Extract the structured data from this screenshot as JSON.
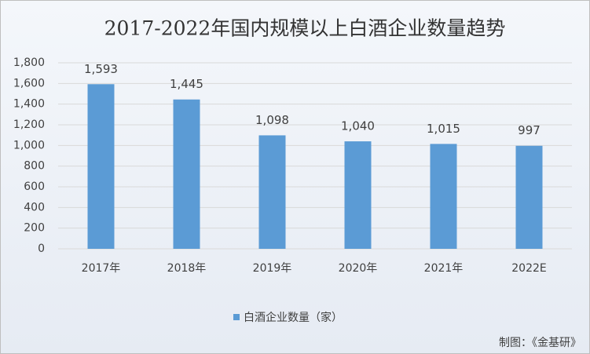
{
  "chart_data": {
    "type": "bar",
    "title": "2017-2022年国内规模以上白酒企业数量趋势",
    "categories": [
      "2017年",
      "2018年",
      "2019年",
      "2020年",
      "2021年",
      "2022E"
    ],
    "series": [
      {
        "name": "白酒企业数量（家）",
        "color": "#5b9bd5",
        "values": [
          1593,
          1445,
          1098,
          1040,
          1015,
          997
        ],
        "value_labels": [
          "1,593",
          "1,445",
          "1,098",
          "1,040",
          "1,015",
          "997"
        ]
      }
    ],
    "ylim": [
      0,
      1800
    ],
    "yticks": [
      0,
      200,
      400,
      600,
      800,
      {
        "value": 1000,
        "label": "1,000"
      },
      {
        "value": 1200,
        "label": "1,200"
      },
      {
        "value": 1400,
        "label": "1,400"
      },
      {
        "value": 1600,
        "label": "1,600"
      },
      {
        "value": 1800,
        "label": "1,800"
      }
    ],
    "grid": true,
    "legend": "bottom",
    "source": "制图：《金基研》"
  }
}
